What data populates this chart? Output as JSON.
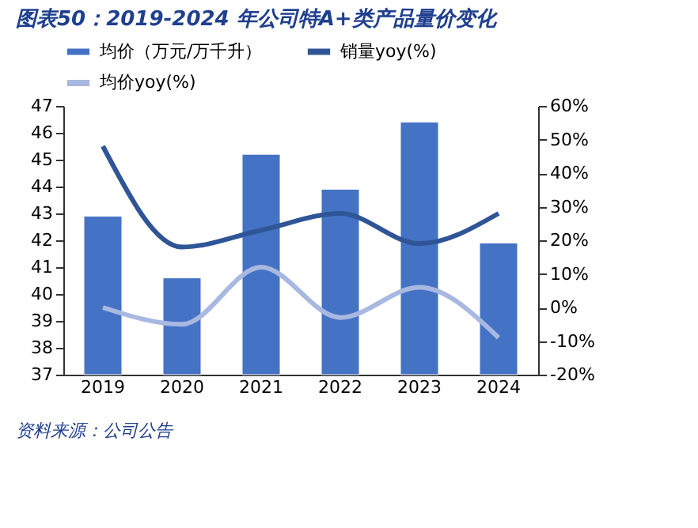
{
  "chart_data": {
    "type": "bar",
    "title": "图表50：2019-2024 年公司特A+类产品量价变化",
    "categories": [
      "2019",
      "2020",
      "2021",
      "2022",
      "2023",
      "2024"
    ],
    "series": [
      {
        "name": "均价（万元/万千升）",
        "color": "#4472c4",
        "values": [
          42.9,
          40.6,
          45.2,
          43.9,
          46.4,
          41.9
        ]
      },
      {
        "name": "销量yoy(%)",
        "type": "line",
        "axis": "y2",
        "color": "#2f5597",
        "values": [
          48,
          18,
          23,
          28,
          19,
          28
        ]
      },
      {
        "name": "均价yoy(%)",
        "type": "line",
        "axis": "y2",
        "color": "#a9b8e0",
        "values": [
          0,
          -5,
          12,
          -3,
          6,
          -9
        ]
      }
    ],
    "ylim": [
      37,
      47
    ],
    "yticks": [
      37,
      38,
      39,
      40,
      41,
      42,
      43,
      44,
      45,
      46,
      47
    ],
    "y2lim": [
      -20,
      60
    ],
    "y2ticks": [
      {
        "value": -20,
        "label": "-20%"
      },
      {
        "value": -10,
        "label": "-10%"
      },
      {
        "value": 0,
        "label": "0%"
      },
      {
        "value": 10,
        "label": "10%"
      },
      {
        "value": 20,
        "label": "20%"
      },
      {
        "value": 30,
        "label": "30%"
      },
      {
        "value": 40,
        "label": "40%"
      },
      {
        "value": 50,
        "label": "50%"
      },
      {
        "value": 60,
        "label": "60%"
      }
    ],
    "grid": false,
    "legend": "top",
    "annotations": [
      "资料来源：公司公告"
    ]
  }
}
